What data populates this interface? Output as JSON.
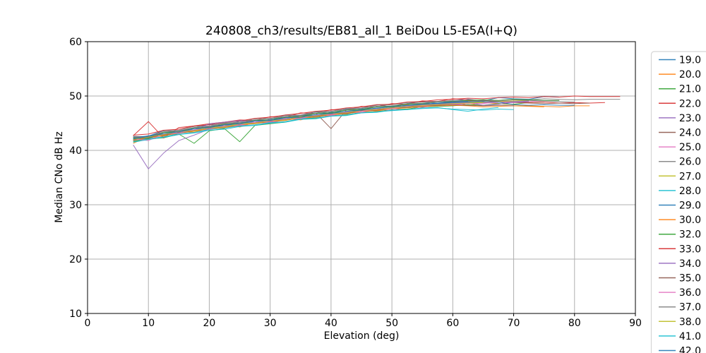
{
  "chart_data": {
    "type": "line",
    "title": "240808_ch3/results/EB81_all_1 BeiDou L5-E5A(I+Q)",
    "xlabel": "Elevation (deg)",
    "ylabel": "Median CNo dB Hz",
    "xlim": [
      0,
      90
    ],
    "ylim": [
      10,
      60
    ],
    "xticks": [
      0,
      10,
      20,
      30,
      40,
      50,
      60,
      70,
      80,
      90
    ],
    "yticks": [
      10,
      20,
      30,
      40,
      50,
      60
    ],
    "grid": true,
    "grid_color": "#b0b0b0",
    "spine_color": "#000000",
    "legend_position": "outside-right",
    "legend_frame_color": "#d5d5d5",
    "series": [
      {
        "name": "19.0",
        "color": "#1f77b4",
        "x0": 7.5,
        "dx": 2.5,
        "y": [
          42.5,
          42.6,
          43.7,
          43.4,
          44.1,
          44.8,
          44.5,
          45.4,
          45.5,
          45.5,
          46.5,
          46.4,
          47.1,
          46.8,
          47.6,
          47.7,
          48.4,
          48.0,
          48.6,
          49.0,
          48.6,
          49.1,
          49.4,
          49.1,
          49.7,
          49.5,
          49.4,
          49.9,
          49.8
        ]
      },
      {
        "name": "20.0",
        "color": "#ff7f0e",
        "x0": 7.5,
        "dx": 2.5,
        "y": [
          41.3,
          42.6,
          42.6,
          43.6,
          43.3,
          44.1,
          44.7,
          44.3,
          45.2,
          45.2,
          45.9,
          45.6,
          46.3,
          47.0,
          46.7,
          47.5,
          47.2,
          47.8,
          48.4,
          48.0,
          48.4,
          48.9,
          48.3,
          48.8,
          48.6,
          48.4,
          48.2,
          48.1,
          48.0,
          48.2,
          48.2
        ]
      },
      {
        "name": "21.0",
        "color": "#2ca02c",
        "x0": 7.5,
        "dx": 2.5,
        "y": [
          41.6,
          42.1,
          42.3,
          43.0,
          41.3,
          43.6,
          44.0,
          41.6,
          44.6,
          44.9,
          45.2,
          45.8,
          45.9,
          46.4,
          46.5,
          47.0,
          47.1,
          47.5,
          47.6,
          48.0,
          48.1,
          48.2,
          48.4,
          48.3,
          48.6,
          48.5,
          48.8,
          48.9
        ]
      },
      {
        "name": "22.0",
        "color": "#d62728",
        "x0": 7.5,
        "dx": 2.5,
        "y": [
          42.7,
          45.3,
          42.3,
          44.2,
          44.5,
          44.9,
          45.2,
          45.6,
          45.5,
          46.2,
          46.1,
          46.9,
          46.8,
          47.5,
          47.4,
          48.1,
          48.0,
          48.6,
          48.5,
          49.1,
          49.0,
          49.5,
          49.3,
          49.2,
          49.0,
          48.9,
          48.8,
          48.9,
          48.7,
          48.8,
          48.7,
          48.8
        ]
      },
      {
        "name": "23.0",
        "color": "#9467bd",
        "x0": 7.5,
        "dx": 2.5,
        "y": [
          41.0,
          36.6,
          39.5,
          41.8,
          42.8,
          43.9,
          44.2,
          44.6,
          45.0,
          45.2,
          45.6,
          45.9,
          46.3,
          46.5,
          46.9,
          47.2,
          47.4,
          47.7,
          48.0,
          48.2,
          48.4,
          48.6,
          48.7,
          48.8,
          48.9,
          49.0,
          49.1
        ]
      },
      {
        "name": "24.0",
        "color": "#8c564b",
        "x0": 7.5,
        "dx": 2.5,
        "y": [
          42.4,
          42.5,
          43.4,
          43.5,
          44.2,
          44.3,
          45.0,
          44.9,
          45.6,
          45.5,
          46.2,
          46.3,
          46.9,
          44.0,
          47.4,
          47.5,
          48.1,
          48.0,
          48.6,
          48.5,
          49.0,
          48.9,
          49.1,
          49.0,
          48.9,
          48.8,
          48.7,
          48.6,
          48.7,
          48.6,
          48.7
        ]
      },
      {
        "name": "25.0",
        "color": "#e377c2",
        "x0": 7.5,
        "dx": 2.5,
        "y": [
          41.9,
          42.0,
          42.9,
          43.0,
          43.7,
          43.8,
          44.4,
          44.5,
          45.1,
          45.0,
          45.7,
          45.8,
          46.3,
          46.4,
          46.9,
          47.0,
          47.5,
          47.4,
          48.0,
          47.9,
          48.4,
          48.3,
          48.7,
          48.6,
          48.9,
          48.8,
          49.0,
          49.1,
          49.2
        ]
      },
      {
        "name": "26.0",
        "color": "#7f7f7f",
        "x0": 7.5,
        "dx": 2.5,
        "y": [
          42.6,
          42.5,
          43.6,
          43.7,
          44.4,
          44.5,
          45.1,
          45.2,
          45.8,
          45.9,
          46.4,
          46.5,
          47.1,
          47.2,
          47.7,
          47.8,
          48.3,
          48.4,
          48.8,
          48.9,
          49.0,
          49.2,
          49.1,
          49.3,
          49.2,
          49.4,
          49.3,
          49.5,
          49.4,
          49.3,
          49.4,
          49.4,
          49.4
        ]
      },
      {
        "name": "27.0",
        "color": "#bcbd22",
        "x0": 7.5,
        "dx": 2.5,
        "y": [
          42.1,
          42.4,
          42.8,
          43.6,
          43.7,
          44.4,
          44.3,
          45.1,
          45.0,
          45.7,
          45.6,
          46.3,
          46.4,
          46.7,
          47.0,
          47.3,
          47.6,
          47.8,
          48.1,
          48.3,
          48.5,
          48.7,
          48.8,
          48.9,
          49.0,
          49.1,
          49.2
        ]
      },
      {
        "name": "28.0",
        "color": "#17becf",
        "x0": 7.5,
        "dx": 2.5,
        "y": [
          41.7,
          42.2,
          42.5,
          43.1,
          43.3,
          43.9,
          44.1,
          44.5,
          44.7,
          45.1,
          45.3,
          45.8,
          46.0,
          46.3,
          46.6,
          46.9,
          47.1,
          47.3,
          47.5,
          47.7,
          47.8,
          47.6,
          47.5,
          47.4,
          47.6,
          47.5
        ]
      },
      {
        "name": "29.0",
        "color": "#1f77b4",
        "x0": 7.5,
        "dx": 2.5,
        "y": [
          42.2,
          42.7,
          43.0,
          43.6,
          43.8,
          44.4,
          44.5,
          45.1,
          45.2,
          45.7,
          45.8,
          46.4,
          46.5,
          47.0,
          47.1,
          47.6,
          47.7,
          48.1,
          48.2,
          48.5,
          48.6,
          48.8,
          48.9,
          49.0,
          48.9,
          48.4,
          48.3,
          48.4,
          48.3,
          48.3
        ]
      },
      {
        "name": "30.0",
        "color": "#ff7f0e",
        "x0": 7.5,
        "dx": 2.5,
        "y": [
          41.8,
          42.3,
          42.7,
          43.2,
          43.5,
          44.0,
          44.2,
          44.7,
          44.9,
          45.3,
          45.5,
          46.0,
          46.1,
          46.6,
          46.7,
          47.2,
          47.3,
          47.7,
          47.8,
          48.1,
          48.2,
          48.3,
          48.2,
          48.0,
          48.1,
          48.2,
          48.1,
          48.0
        ]
      },
      {
        "name": "32.0",
        "color": "#2ca02c",
        "x0": 7.5,
        "dx": 2.5,
        "y": [
          42.3,
          42.2,
          43.3,
          43.4,
          44.1,
          44.2,
          44.8,
          44.9,
          45.5,
          45.6,
          46.1,
          46.2,
          46.8,
          46.9,
          47.4,
          47.5,
          48.0,
          48.1,
          48.5,
          48.6,
          48.9,
          49.0,
          49.2,
          49.3,
          49.2,
          49.4,
          49.3,
          49.2,
          49.2
        ]
      },
      {
        "name": "33.0",
        "color": "#d62728",
        "x0": 7.5,
        "dx": 2.5,
        "y": [
          42.8,
          43.0,
          43.7,
          43.9,
          44.5,
          44.7,
          45.2,
          45.4,
          45.9,
          46.1,
          46.5,
          46.8,
          47.2,
          47.4,
          47.8,
          48.0,
          48.4,
          48.5,
          48.9,
          49.0,
          49.3,
          49.4,
          49.6,
          49.5,
          49.7,
          49.8,
          49.7,
          49.9,
          49.8,
          50.0,
          49.9,
          49.9,
          49.9
        ]
      },
      {
        "name": "34.0",
        "color": "#9467bd",
        "x0": 7.5,
        "dx": 2.5,
        "y": [
          42.0,
          42.5,
          42.9,
          43.5,
          43.7,
          44.9,
          45.2,
          45.5,
          45.2,
          45.6,
          45.7,
          46.2,
          46.4,
          46.8,
          47.0,
          47.4,
          47.6,
          47.9,
          48.1,
          48.4,
          48.5,
          48.7,
          48.8,
          48.3,
          48.5,
          48.9,
          49.0
        ]
      },
      {
        "name": "35.0",
        "color": "#8c564b",
        "x0": 7.5,
        "dx": 2.5,
        "y": [
          41.9,
          42.4,
          42.8,
          43.3,
          43.6,
          44.1,
          44.3,
          44.8,
          45.0,
          45.4,
          45.6,
          46.1,
          46.2,
          46.7,
          46.8,
          47.3,
          47.4,
          47.8,
          47.9,
          48.2,
          48.3,
          48.4,
          48.3,
          48.2,
          48.3,
          48.2
        ]
      },
      {
        "name": "36.0",
        "color": "#e377c2",
        "x0": 7.5,
        "dx": 2.5,
        "y": [
          42.1,
          41.8,
          43.0,
          43.2,
          43.8,
          44.0,
          44.5,
          44.7,
          45.2,
          45.3,
          45.8,
          45.9,
          46.5,
          46.6,
          47.1,
          47.2,
          47.6,
          47.7,
          48.1,
          48.2,
          48.4,
          48.5,
          48.6,
          48.7,
          48.8
        ]
      },
      {
        "name": "37.0",
        "color": "#7f7f7f",
        "x0": 7.5,
        "dx": 2.5,
        "y": [
          42.4,
          42.3,
          43.4,
          43.6,
          44.2,
          44.4,
          44.9,
          45.1,
          45.6,
          45.8,
          46.2,
          46.4,
          46.9,
          47.1,
          47.5,
          47.7,
          48.1,
          48.2,
          48.6,
          48.7,
          48.9,
          49.1,
          49.0,
          49.2,
          49.1,
          49.3,
          49.2,
          49.1,
          49.0,
          48.9
        ]
      },
      {
        "name": "38.0",
        "color": "#bcbd22",
        "x0": 7.5,
        "dx": 2.5,
        "y": [
          42.0,
          42.5,
          42.9,
          43.5,
          43.6,
          44.2,
          44.3,
          44.9,
          45.0,
          45.5,
          45.6,
          46.2,
          46.3,
          46.8,
          46.9,
          47.4,
          47.5,
          47.9,
          48.0,
          48.3,
          48.4,
          48.6,
          48.7,
          48.8
        ]
      },
      {
        "name": "41.0",
        "color": "#17becf",
        "x0": 7.5,
        "dx": 2.5,
        "y": [
          41.5,
          42.0,
          42.4,
          42.9,
          43.2,
          43.7,
          43.9,
          44.4,
          44.6,
          45.0,
          45.2,
          45.7,
          45.8,
          46.3,
          46.4,
          46.9,
          47.0,
          47.4,
          47.5,
          47.8,
          47.9,
          47.5,
          47.2,
          47.6,
          47.9
        ]
      },
      {
        "name": "42.0",
        "color": "#1f77b4",
        "x0": 7.5,
        "dx": 2.5,
        "y": [
          42.1,
          42.6,
          43.1,
          43.4,
          44.0,
          44.2,
          44.7,
          44.9,
          45.4,
          45.5,
          46.0,
          46.1,
          46.6,
          46.8,
          47.2,
          47.4,
          47.8,
          48.0,
          48.3,
          48.5,
          48.7,
          48.9,
          49.0
        ]
      }
    ]
  }
}
